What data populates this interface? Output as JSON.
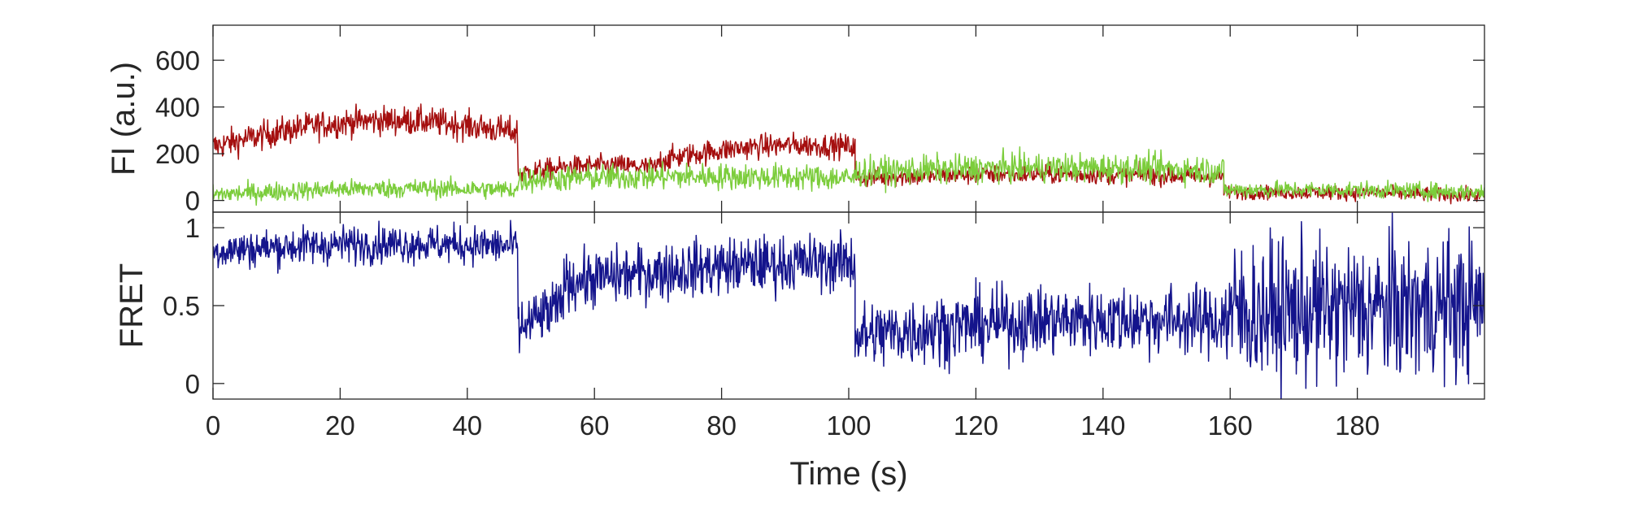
{
  "chart_data": [
    {
      "type": "line",
      "panel": "intensity",
      "xlabel": "",
      "ylabel": "FI (a.u.)",
      "xlim": [
        0,
        200
      ],
      "ylim": [
        -50,
        750
      ],
      "yticks": [
        0,
        200,
        400,
        600
      ],
      "ytick_labels": [
        "0",
        "200",
        "400",
        "600"
      ],
      "series": [
        {
          "color": "#a50f0f",
          "segments": [
            {
              "x0": 0,
              "x1": 48,
              "y0": 230,
              "y1": 290,
              "bump": 80,
              "noise": 60
            },
            {
              "x0": 48,
              "x1": 70,
              "y0": 115,
              "y1": 140,
              "bump": 20,
              "noise": 45
            },
            {
              "x0": 70,
              "x1": 101,
              "y0": 170,
              "y1": 230,
              "bump": 30,
              "noise": 50
            },
            {
              "x0": 101,
              "x1": 159,
              "y0": 95,
              "y1": 100,
              "bump": 15,
              "noise": 40
            },
            {
              "x0": 159,
              "x1": 200,
              "y0": 35,
              "y1": 20,
              "bump": 5,
              "noise": 30
            }
          ]
        },
        {
          "color": "#7ccd3c",
          "segments": [
            {
              "x0": 0,
              "x1": 48,
              "y0": 25,
              "y1": 45,
              "bump": 15,
              "noise": 40
            },
            {
              "x0": 48,
              "x1": 101,
              "y0": 90,
              "y1": 95,
              "bump": 10,
              "noise": 55
            },
            {
              "x0": 101,
              "x1": 159,
              "y0": 120,
              "y1": 130,
              "bump": 15,
              "noise": 60
            },
            {
              "x0": 159,
              "x1": 200,
              "y0": 45,
              "y1": 35,
              "bump": 5,
              "noise": 35
            }
          ]
        }
      ]
    },
    {
      "type": "line",
      "panel": "fret",
      "xlabel": "Time (s)",
      "ylabel": "FRET",
      "xlim": [
        0,
        200
      ],
      "ylim": [
        -0.1,
        1.1
      ],
      "yticks": [
        0,
        0.5,
        1
      ],
      "ytick_labels": [
        "0",
        "0.5",
        "1"
      ],
      "xticks": [
        0,
        20,
        40,
        60,
        80,
        100,
        120,
        140,
        160,
        180
      ],
      "xtick_labels": [
        "0",
        "20",
        "40",
        "60",
        "80",
        "100",
        "120",
        "140",
        "160",
        "180"
      ],
      "series": [
        {
          "color": "#14148c",
          "segments": [
            {
              "x0": 0,
              "x1": 48,
              "y0": 0.85,
              "y1": 0.88,
              "bump": 0.03,
              "noise": 0.12
            },
            {
              "x0": 48,
              "x1": 55,
              "y0": 0.35,
              "y1": 0.5,
              "bump": 0,
              "noise": 0.18
            },
            {
              "x0": 55,
              "x1": 101,
              "y0": 0.65,
              "y1": 0.78,
              "bump": 0.03,
              "noise": 0.18
            },
            {
              "x0": 101,
              "x1": 159,
              "y0": 0.3,
              "y1": 0.4,
              "bump": 0.05,
              "noise": 0.22
            },
            {
              "x0": 159,
              "x1": 200,
              "y0": 0.45,
              "y1": 0.5,
              "bump": 0,
              "noise": 0.45
            }
          ]
        }
      ]
    }
  ]
}
